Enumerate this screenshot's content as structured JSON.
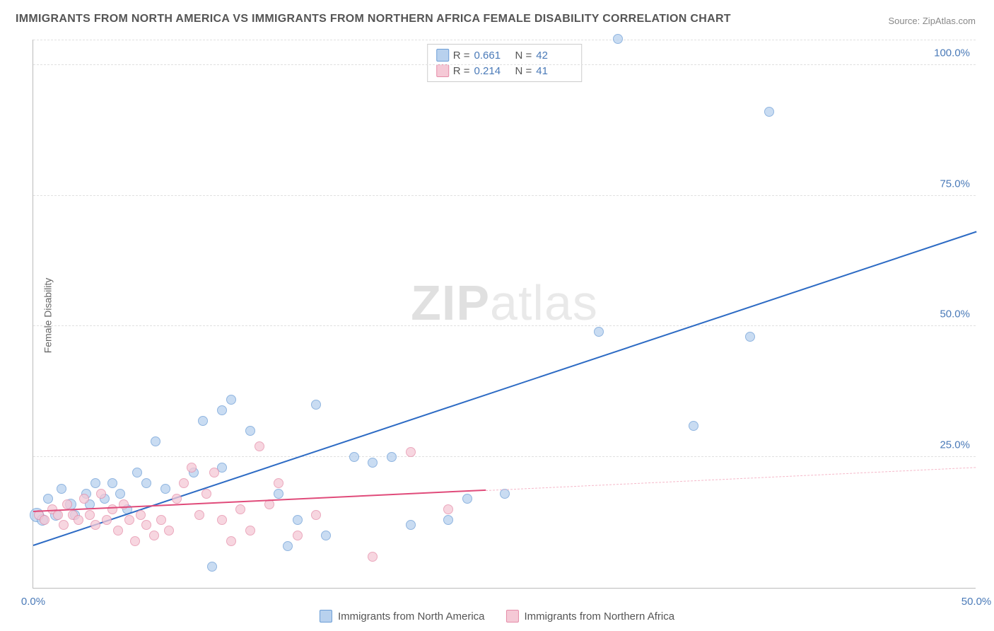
{
  "title": "IMMIGRANTS FROM NORTH AMERICA VS IMMIGRANTS FROM NORTHERN AFRICA FEMALE DISABILITY CORRELATION CHART",
  "source": "Source: ZipAtlas.com",
  "ylabel": "Female Disability",
  "watermark_a": "ZIP",
  "watermark_b": "atlas",
  "chart": {
    "type": "scatter",
    "xlim": [
      0,
      50
    ],
    "ylim": [
      0,
      105
    ],
    "yticks": [
      25,
      50,
      75,
      100
    ],
    "ytick_labels": [
      "25.0%",
      "50.0%",
      "75.0%",
      "100.0%"
    ],
    "xtick_values": [
      0,
      50
    ],
    "xtick_labels": [
      "0.0%",
      "50.0%"
    ],
    "grid_color": "#e0e0e0",
    "background": "#ffffff",
    "axis_color": "#bbbbbb"
  },
  "series": [
    {
      "id": "north_america",
      "label": "Immigrants from North America",
      "point_fill": "#b8d1ee",
      "point_stroke": "#6b9dd6",
      "point_opacity": 0.75,
      "trend_color": "#2d6bc4",
      "trend_width": 2,
      "R": "0.661",
      "N": "42",
      "trend": {
        "x1": 0,
        "y1": 8,
        "x2": 50,
        "y2": 68
      },
      "points": [
        {
          "x": 0.2,
          "y": 14,
          "r": 10
        },
        {
          "x": 0.5,
          "y": 13,
          "r": 8
        },
        {
          "x": 0.8,
          "y": 17,
          "r": 7
        },
        {
          "x": 1.2,
          "y": 14,
          "r": 8
        },
        {
          "x": 1.5,
          "y": 19,
          "r": 7
        },
        {
          "x": 2.0,
          "y": 16,
          "r": 8
        },
        {
          "x": 2.2,
          "y": 14,
          "r": 7
        },
        {
          "x": 2.8,
          "y": 18,
          "r": 7
        },
        {
          "x": 3.0,
          "y": 16,
          "r": 7
        },
        {
          "x": 3.3,
          "y": 20,
          "r": 7
        },
        {
          "x": 3.8,
          "y": 17,
          "r": 7
        },
        {
          "x": 4.2,
          "y": 20,
          "r": 7
        },
        {
          "x": 4.6,
          "y": 18,
          "r": 7
        },
        {
          "x": 5.0,
          "y": 15,
          "r": 7
        },
        {
          "x": 5.5,
          "y": 22,
          "r": 7
        },
        {
          "x": 6.0,
          "y": 20,
          "r": 7
        },
        {
          "x": 6.5,
          "y": 28,
          "r": 7
        },
        {
          "x": 7.0,
          "y": 19,
          "r": 7
        },
        {
          "x": 8.5,
          "y": 22,
          "r": 7
        },
        {
          "x": 9.0,
          "y": 32,
          "r": 7
        },
        {
          "x": 9.5,
          "y": 4,
          "r": 7
        },
        {
          "x": 10.0,
          "y": 23,
          "r": 7
        },
        {
          "x": 10.0,
          "y": 34,
          "r": 7
        },
        {
          "x": 10.5,
          "y": 36,
          "r": 7
        },
        {
          "x": 11.5,
          "y": 30,
          "r": 7
        },
        {
          "x": 13.0,
          "y": 18,
          "r": 7
        },
        {
          "x": 13.5,
          "y": 8,
          "r": 7
        },
        {
          "x": 14.0,
          "y": 13,
          "r": 7
        },
        {
          "x": 15.0,
          "y": 35,
          "r": 7
        },
        {
          "x": 15.5,
          "y": 10,
          "r": 7
        },
        {
          "x": 17.0,
          "y": 25,
          "r": 7
        },
        {
          "x": 18.0,
          "y": 24,
          "r": 7
        },
        {
          "x": 19.0,
          "y": 25,
          "r": 7
        },
        {
          "x": 20.0,
          "y": 12,
          "r": 7
        },
        {
          "x": 22.0,
          "y": 13,
          "r": 7
        },
        {
          "x": 23.0,
          "y": 17,
          "r": 7
        },
        {
          "x": 25.0,
          "y": 18,
          "r": 7
        },
        {
          "x": 30.0,
          "y": 49,
          "r": 7
        },
        {
          "x": 31.0,
          "y": 105,
          "r": 7
        },
        {
          "x": 35.0,
          "y": 31,
          "r": 7
        },
        {
          "x": 38.0,
          "y": 48,
          "r": 7
        },
        {
          "x": 39.0,
          "y": 91,
          "r": 7
        }
      ]
    },
    {
      "id": "northern_africa",
      "label": "Immigrants from Northern Africa",
      "point_fill": "#f5c9d6",
      "point_stroke": "#e58ca8",
      "point_opacity": 0.75,
      "trend_color": "#e04b7a",
      "trend_width": 2,
      "trend_dash_color": "#f5b8c9",
      "R": "0.214",
      "N": "41",
      "trend": {
        "x1": 0,
        "y1": 14.5,
        "x2": 50,
        "y2": 23
      },
      "trend_solid_until_x": 24,
      "points": [
        {
          "x": 0.3,
          "y": 14,
          "r": 7
        },
        {
          "x": 0.6,
          "y": 13,
          "r": 7
        },
        {
          "x": 1.0,
          "y": 15,
          "r": 7
        },
        {
          "x": 1.3,
          "y": 14,
          "r": 7
        },
        {
          "x": 1.6,
          "y": 12,
          "r": 7
        },
        {
          "x": 1.8,
          "y": 16,
          "r": 7
        },
        {
          "x": 2.1,
          "y": 14,
          "r": 7
        },
        {
          "x": 2.4,
          "y": 13,
          "r": 7
        },
        {
          "x": 2.7,
          "y": 17,
          "r": 7
        },
        {
          "x": 3.0,
          "y": 14,
          "r": 7
        },
        {
          "x": 3.3,
          "y": 12,
          "r": 7
        },
        {
          "x": 3.6,
          "y": 18,
          "r": 7
        },
        {
          "x": 3.9,
          "y": 13,
          "r": 7
        },
        {
          "x": 4.2,
          "y": 15,
          "r": 7
        },
        {
          "x": 4.5,
          "y": 11,
          "r": 7
        },
        {
          "x": 4.8,
          "y": 16,
          "r": 7
        },
        {
          "x": 5.1,
          "y": 13,
          "r": 7
        },
        {
          "x": 5.4,
          "y": 9,
          "r": 7
        },
        {
          "x": 5.7,
          "y": 14,
          "r": 7
        },
        {
          "x": 6.0,
          "y": 12,
          "r": 7
        },
        {
          "x": 6.4,
          "y": 10,
          "r": 7
        },
        {
          "x": 6.8,
          "y": 13,
          "r": 7
        },
        {
          "x": 7.2,
          "y": 11,
          "r": 7
        },
        {
          "x": 7.6,
          "y": 17,
          "r": 7
        },
        {
          "x": 8.0,
          "y": 20,
          "r": 7
        },
        {
          "x": 8.4,
          "y": 23,
          "r": 7
        },
        {
          "x": 8.8,
          "y": 14,
          "r": 7
        },
        {
          "x": 9.2,
          "y": 18,
          "r": 7
        },
        {
          "x": 9.6,
          "y": 22,
          "r": 7
        },
        {
          "x": 10.0,
          "y": 13,
          "r": 7
        },
        {
          "x": 10.5,
          "y": 9,
          "r": 7
        },
        {
          "x": 11.0,
          "y": 15,
          "r": 7
        },
        {
          "x": 11.5,
          "y": 11,
          "r": 7
        },
        {
          "x": 12.0,
          "y": 27,
          "r": 7
        },
        {
          "x": 12.5,
          "y": 16,
          "r": 7
        },
        {
          "x": 13.0,
          "y": 20,
          "r": 7
        },
        {
          "x": 14.0,
          "y": 10,
          "r": 7
        },
        {
          "x": 15.0,
          "y": 14,
          "r": 7
        },
        {
          "x": 18.0,
          "y": 6,
          "r": 7
        },
        {
          "x": 20.0,
          "y": 26,
          "r": 7
        },
        {
          "x": 22.0,
          "y": 15,
          "r": 7
        }
      ]
    }
  ],
  "legend": {
    "R_label": "R =",
    "N_label": "N ="
  }
}
